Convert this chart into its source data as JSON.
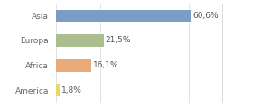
{
  "categories": [
    "Asia",
    "Europa",
    "Africa",
    "America"
  ],
  "values": [
    60.6,
    21.5,
    16.1,
    1.8
  ],
  "labels": [
    "60,6%",
    "21,5%",
    "16,1%",
    "1,8%"
  ],
  "bar_colors": [
    "#7b9cc5",
    "#abbe8f",
    "#e8aa79",
    "#e8d86a"
  ],
  "background_color": "#ffffff",
  "plot_bg_color": "#ffffff",
  "xlim": [
    0,
    75
  ],
  "label_fontsize": 6.5,
  "tick_fontsize": 6.5,
  "bar_height": 0.5,
  "grid_color": "#dddddd"
}
